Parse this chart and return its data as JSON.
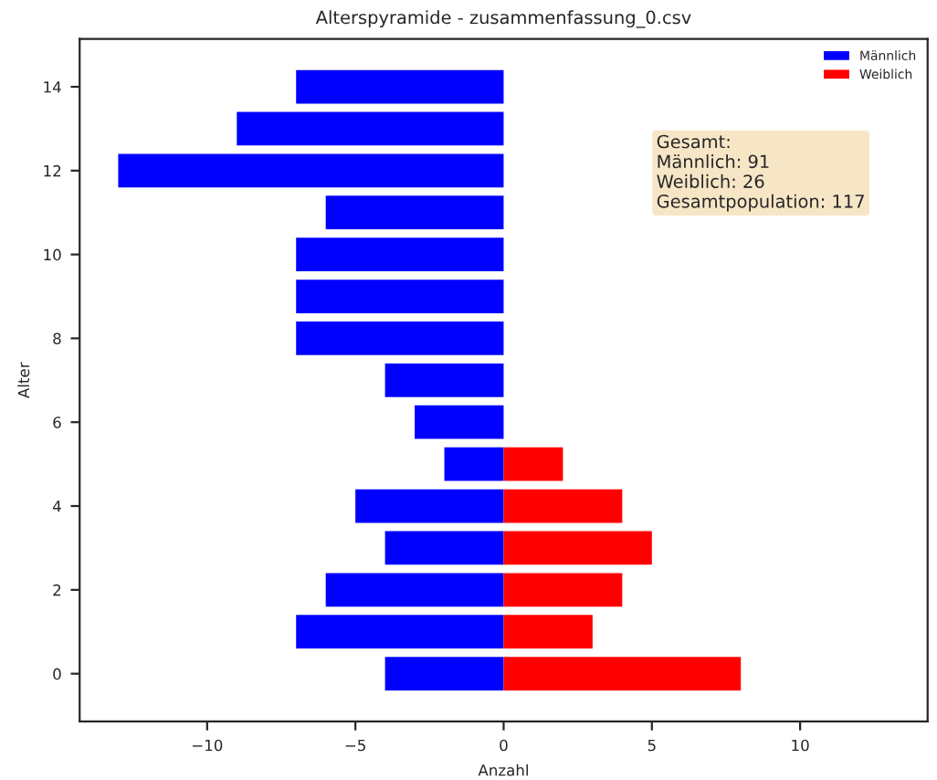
{
  "chart_data": {
    "type": "bar",
    "orientation": "horizontal",
    "title": "Alterspyramide - zusammenfassung_0.csv",
    "xlabel": "Anzahl",
    "ylabel": "Alter",
    "x": [
      0,
      1,
      2,
      3,
      4,
      5,
      6,
      7,
      8,
      9,
      10,
      11,
      12,
      13,
      14
    ],
    "series": [
      {
        "name": "Männlich",
        "color": "#0000ff",
        "values": [
          -4,
          -7,
          -6,
          -4,
          -5,
          -2,
          -3,
          -4,
          -7,
          -7,
          -7,
          -6,
          -13,
          -9,
          -7
        ]
      },
      {
        "name": "Weiblich",
        "color": "#ff0000",
        "values": [
          8,
          3,
          4,
          5,
          4,
          2,
          null,
          null,
          null,
          null,
          null,
          null,
          null,
          null,
          null
        ]
      }
    ],
    "xlim": [
      -14.3,
      14.3
    ],
    "ylim": [
      -1.14,
      15.14
    ],
    "xticks": [
      {
        "value": -10,
        "label": "−10"
      },
      {
        "value": -5,
        "label": "−5"
      },
      0,
      5,
      10
    ],
    "yticks": [
      0,
      2,
      4,
      6,
      8,
      10,
      12,
      14
    ],
    "legend": "top right",
    "grid": false,
    "annotations": [
      "Gesamt:\nMännlich: 91\nWeiblich: 26\nGesamtpopulation: 117"
    ]
  }
}
